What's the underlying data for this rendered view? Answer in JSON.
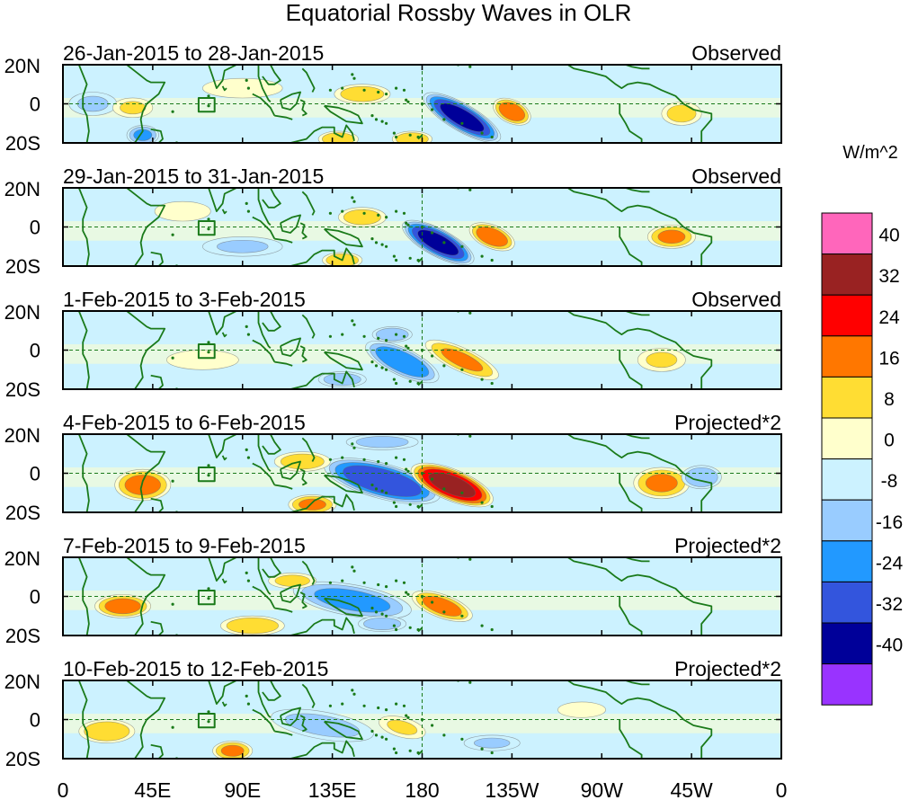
{
  "chart_data": {
    "type": "heatmap",
    "title": "Equatorial Rossby Waves in OLR",
    "units": "W/m^2",
    "x_tick_labels": [
      "0",
      "45E",
      "90E",
      "135E",
      "180",
      "135W",
      "90W",
      "45W",
      "0"
    ],
    "y_tick_labels": [
      "20N",
      "0",
      "20S"
    ],
    "lon_range": [
      0,
      360
    ],
    "lat_range": [
      -20,
      20
    ],
    "colorbar": {
      "levels": [
        -40,
        -32,
        -24,
        -16,
        -8,
        0,
        8,
        16,
        24,
        32,
        40
      ],
      "level_labels": [
        "40",
        "32",
        "24",
        "16",
        "8",
        "0",
        "-8",
        "-16",
        "-24",
        "-32",
        "-40"
      ],
      "colors": [
        "#9933ff",
        "#000099",
        "#3355dd",
        "#2299ff",
        "#99ccff",
        "#ccf2ff",
        "#ffffcc",
        "#ffdd33",
        "#ff7700",
        "#ff0000",
        "#992222",
        "#ff66bb"
      ]
    },
    "panels": [
      {
        "date_label": "26-Jan-2015 to 28-Jan-2015",
        "status": "Observed",
        "anomalies": [
          {
            "lon": 200,
            "lat": -7,
            "rx": 22,
            "ry": 7,
            "rot": 30,
            "v": -36
          },
          {
            "lon": 225,
            "lat": -4,
            "rx": 10,
            "ry": 6,
            "rot": 25,
            "v": 22
          },
          {
            "lon": 138,
            "lat": -18,
            "rx": 10,
            "ry": 4,
            "rot": 0,
            "v": 16
          },
          {
            "lon": 150,
            "lat": 5,
            "rx": 14,
            "ry": 5,
            "rot": 0,
            "v": 14
          },
          {
            "lon": 175,
            "lat": -18,
            "rx": 10,
            "ry": 4,
            "rot": 0,
            "v": 16
          },
          {
            "lon": 40,
            "lat": -16,
            "rx": 8,
            "ry": 5,
            "rot": 0,
            "v": -18
          },
          {
            "lon": 15,
            "lat": 0,
            "rx": 12,
            "ry": 6,
            "rot": 0,
            "v": -10
          },
          {
            "lon": 310,
            "lat": -5,
            "rx": 10,
            "ry": 6,
            "rot": 0,
            "v": 12
          },
          {
            "lon": 35,
            "lat": -2,
            "rx": 10,
            "ry": 5,
            "rot": 0,
            "v": 10
          },
          {
            "lon": 90,
            "lat": 8,
            "rx": 20,
            "ry": 5,
            "rot": 0,
            "v": 6
          }
        ]
      },
      {
        "date_label": "29-Jan-2015 to 31-Jan-2015",
        "status": "Observed",
        "anomalies": [
          {
            "lon": 188,
            "lat": -8,
            "rx": 20,
            "ry": 7,
            "rot": 28,
            "v": -36
          },
          {
            "lon": 215,
            "lat": -5,
            "rx": 12,
            "ry": 6,
            "rot": 22,
            "v": 22
          },
          {
            "lon": 150,
            "lat": 5,
            "rx": 12,
            "ry": 5,
            "rot": 0,
            "v": 14
          },
          {
            "lon": 140,
            "lat": -17,
            "rx": 10,
            "ry": 4,
            "rot": 0,
            "v": 16
          },
          {
            "lon": 305,
            "lat": -5,
            "rx": 12,
            "ry": 6,
            "rot": 0,
            "v": 18
          },
          {
            "lon": 90,
            "lat": -10,
            "rx": 20,
            "ry": 5,
            "rot": 0,
            "v": -10
          },
          {
            "lon": 60,
            "lat": 8,
            "rx": 14,
            "ry": 5,
            "rot": 0,
            "v": 8
          }
        ]
      },
      {
        "date_label": "1-Feb-2015 to 3-Feb-2015",
        "status": "Observed",
        "anomalies": [
          {
            "lon": 170,
            "lat": -6,
            "rx": 20,
            "ry": 7,
            "rot": 25,
            "v": -24
          },
          {
            "lon": 200,
            "lat": -5,
            "rx": 20,
            "ry": 6,
            "rot": 25,
            "v": 18
          },
          {
            "lon": 140,
            "lat": -15,
            "rx": 12,
            "ry": 4,
            "rot": 0,
            "v": -14
          },
          {
            "lon": 300,
            "lat": -5,
            "rx": 12,
            "ry": 6,
            "rot": 0,
            "v": 10
          },
          {
            "lon": 70,
            "lat": -5,
            "rx": 18,
            "ry": 5,
            "rot": 0,
            "v": 8
          },
          {
            "lon": 165,
            "lat": 8,
            "rx": 10,
            "ry": 4,
            "rot": 0,
            "v": -16
          }
        ]
      },
      {
        "date_label": "4-Feb-2015 to 6-Feb-2015",
        "status": "Projected*2",
        "anomalies": [
          {
            "lon": 160,
            "lat": -4,
            "rx": 30,
            "ry": 9,
            "rot": 15,
            "v": -32
          },
          {
            "lon": 195,
            "lat": -6,
            "rx": 22,
            "ry": 8,
            "rot": 22,
            "v": 36
          },
          {
            "lon": 40,
            "lat": -6,
            "rx": 14,
            "ry": 8,
            "rot": 0,
            "v": 20
          },
          {
            "lon": 125,
            "lat": -16,
            "rx": 12,
            "ry": 5,
            "rot": 0,
            "v": 18
          },
          {
            "lon": 120,
            "lat": 6,
            "rx": 14,
            "ry": 5,
            "rot": 0,
            "v": 14
          },
          {
            "lon": 300,
            "lat": -5,
            "rx": 14,
            "ry": 8,
            "rot": 0,
            "v": 18
          },
          {
            "lon": 320,
            "lat": -2,
            "rx": 10,
            "ry": 6,
            "rot": 0,
            "v": -16
          },
          {
            "lon": 160,
            "lat": 16,
            "rx": 18,
            "ry": 4,
            "rot": 0,
            "v": -12
          }
        ]
      },
      {
        "date_label": "7-Feb-2015 to 9-Feb-2015",
        "status": "Projected*2",
        "anomalies": [
          {
            "lon": 145,
            "lat": -2,
            "rx": 30,
            "ry": 8,
            "rot": 10,
            "v": -20
          },
          {
            "lon": 190,
            "lat": -5,
            "rx": 16,
            "ry": 6,
            "rot": 20,
            "v": 20
          },
          {
            "lon": 30,
            "lat": -5,
            "rx": 14,
            "ry": 6,
            "rot": 0,
            "v": 20
          },
          {
            "lon": 95,
            "lat": -15,
            "rx": 16,
            "ry": 5,
            "rot": 0,
            "v": 16
          },
          {
            "lon": 115,
            "lat": 8,
            "rx": 12,
            "ry": 4,
            "rot": 0,
            "v": 12
          },
          {
            "lon": 160,
            "lat": -14,
            "rx": 12,
            "ry": 4,
            "rot": 0,
            "v": -14
          }
        ]
      },
      {
        "date_label": "10-Feb-2015 to 12-Feb-2015",
        "status": "Projected*2",
        "anomalies": [
          {
            "lon": 22,
            "lat": -6,
            "rx": 14,
            "ry": 6,
            "rot": 0,
            "v": 16
          },
          {
            "lon": 85,
            "lat": -16,
            "rx": 10,
            "ry": 5,
            "rot": 0,
            "v": 18
          },
          {
            "lon": 130,
            "lat": -3,
            "rx": 26,
            "ry": 7,
            "rot": 10,
            "v": -12
          },
          {
            "lon": 170,
            "lat": -4,
            "rx": 12,
            "ry": 5,
            "rot": 15,
            "v": 10
          },
          {
            "lon": 215,
            "lat": -12,
            "rx": 14,
            "ry": 4,
            "rot": 0,
            "v": -10
          },
          {
            "lon": 260,
            "lat": 5,
            "rx": 12,
            "ry": 4,
            "rot": 0,
            "v": 8
          }
        ]
      }
    ]
  }
}
